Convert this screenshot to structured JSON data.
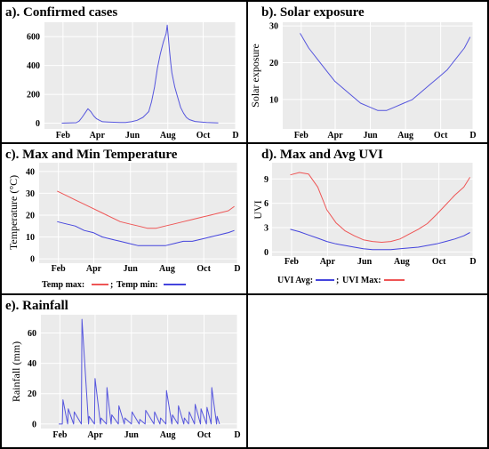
{
  "chart_data": [
    {
      "type": "line",
      "title": "a). Confirmed cases",
      "ylabel": "",
      "xticks": [
        "Feb",
        "Apr",
        "Jun",
        "Aug",
        "Oct",
        "D"
      ],
      "yticks": [
        0,
        200,
        400,
        600
      ],
      "ylim": [
        -40,
        700
      ],
      "xlim": [
        0,
        330
      ],
      "x_unit": "days from Jan 1",
      "tick_positions": [
        32,
        91,
        152,
        213,
        274,
        330
      ],
      "series": [
        {
          "color": "#5555dd",
          "x": [
            30,
            55,
            60,
            65,
            70,
            75,
            80,
            85,
            90,
            95,
            100,
            110,
            120,
            130,
            140,
            150,
            160,
            170,
            180,
            185,
            190,
            195,
            200,
            205,
            210,
            212,
            214,
            216,
            218,
            220,
            225,
            230,
            235,
            240,
            245,
            250,
            260,
            270,
            280,
            290,
            300
          ],
          "y": [
            0,
            3,
            15,
            40,
            70,
            100,
            80,
            50,
            30,
            20,
            10,
            8,
            6,
            5,
            5,
            10,
            20,
            40,
            80,
            150,
            250,
            380,
            480,
            560,
            620,
            680,
            590,
            500,
            420,
            350,
            250,
            180,
            110,
            70,
            40,
            25,
            12,
            8,
            5,
            3,
            2
          ]
        }
      ]
    },
    {
      "type": "line",
      "title": "b). Solar exposure",
      "ylabel": "Solar exposure",
      "xticks": [
        "Feb",
        "Apr",
        "Jun",
        "Aug",
        "Oct",
        "D"
      ],
      "yticks": [
        10,
        20,
        30
      ],
      "ylim": [
        2,
        31
      ],
      "xlim": [
        0,
        330
      ],
      "tick_positions": [
        32,
        91,
        152,
        213,
        274,
        330
      ],
      "series": [
        {
          "color": "#5555dd",
          "x": [
            30,
            45,
            60,
            75,
            90,
            105,
            120,
            135,
            150,
            165,
            180,
            195,
            210,
            225,
            240,
            255,
            270,
            285,
            300,
            315,
            325
          ],
          "y": [
            28,
            24,
            21,
            18,
            15,
            13,
            11,
            9,
            8,
            7,
            7,
            8,
            9,
            10,
            12,
            14,
            16,
            18,
            21,
            24,
            27
          ]
        }
      ]
    },
    {
      "type": "line",
      "title": "c). Max and Min Temperature",
      "ylabel": "Temperature (°C)",
      "xticks": [
        "Feb",
        "Apr",
        "Jun",
        "Aug",
        "Oct",
        "D"
      ],
      "yticks": [
        0,
        10,
        20,
        30,
        40
      ],
      "ylim": [
        -2,
        44
      ],
      "xlim": [
        0,
        330
      ],
      "tick_positions": [
        32,
        91,
        152,
        213,
        274,
        330
      ],
      "series": [
        {
          "name": "Temp max:",
          "color": "#ee5555",
          "x": [
            30,
            45,
            60,
            75,
            90,
            105,
            120,
            135,
            150,
            165,
            180,
            195,
            210,
            225,
            240,
            255,
            270,
            285,
            300,
            315,
            325
          ],
          "y": [
            31,
            29,
            27,
            25,
            23,
            21,
            19,
            17,
            16,
            15,
            14,
            14,
            15,
            16,
            17,
            18,
            19,
            20,
            21,
            22,
            24
          ]
        },
        {
          "name": "Temp min:",
          "color": "#4444dd",
          "x": [
            30,
            45,
            60,
            75,
            90,
            105,
            120,
            135,
            150,
            165,
            180,
            195,
            210,
            225,
            240,
            255,
            270,
            285,
            300,
            315,
            325
          ],
          "y": [
            17,
            16,
            15,
            13,
            12,
            10,
            9,
            8,
            7,
            6,
            6,
            6,
            6,
            7,
            8,
            8,
            9,
            10,
            11,
            12,
            13
          ]
        }
      ]
    },
    {
      "type": "line",
      "title": "d). Max and Avg UVI",
      "ylabel": "UVI",
      "xticks": [
        "Feb",
        "Apr",
        "Jun",
        "Aug",
        "Oct",
        "D"
      ],
      "yticks": [
        0,
        3,
        6,
        9
      ],
      "ylim": [
        -0.5,
        11
      ],
      "xlim": [
        0,
        330
      ],
      "tick_positions": [
        32,
        91,
        152,
        213,
        274,
        330
      ],
      "series": [
        {
          "name": "UVI Avg:",
          "color": "#4444dd",
          "x": [
            30,
            45,
            60,
            75,
            90,
            105,
            120,
            135,
            150,
            165,
            180,
            195,
            210,
            225,
            240,
            255,
            270,
            285,
            300,
            315,
            325
          ],
          "y": [
            2.8,
            2.5,
            2.1,
            1.7,
            1.3,
            1.0,
            0.8,
            0.6,
            0.4,
            0.3,
            0.3,
            0.3,
            0.4,
            0.5,
            0.6,
            0.8,
            1.0,
            1.3,
            1.6,
            2.0,
            2.4
          ]
        },
        {
          "name": "UVI Max:",
          "color": "#ee5555",
          "x": [
            30,
            45,
            60,
            75,
            90,
            105,
            120,
            135,
            150,
            165,
            180,
            195,
            210,
            225,
            240,
            255,
            270,
            285,
            300,
            315,
            325
          ],
          "y": [
            9.5,
            9.8,
            9.6,
            8.0,
            5.2,
            3.6,
            2.6,
            2.0,
            1.5,
            1.3,
            1.2,
            1.3,
            1.6,
            2.2,
            2.8,
            3.5,
            4.6,
            5.8,
            7.0,
            8.0,
            9.2
          ]
        }
      ]
    },
    {
      "type": "line",
      "title": "e). Rainfall",
      "ylabel": "Rainfall (mm)",
      "xticks": [
        "Feb",
        "Apr",
        "Jun",
        "Aug",
        "Oct",
        "D"
      ],
      "yticks": [
        0,
        20,
        40,
        60
      ],
      "ylim": [
        -3,
        72
      ],
      "xlim": [
        0,
        330
      ],
      "tick_positions": [
        32,
        91,
        152,
        213,
        274,
        330
      ],
      "series": [
        {
          "color": "#5555dd",
          "x": [
            30,
            36,
            37,
            45,
            46,
            55,
            56,
            68,
            69,
            80,
            81,
            90,
            91,
            100,
            101,
            110,
            111,
            118,
            119,
            130,
            131,
            140,
            141,
            152,
            153,
            165,
            166,
            175,
            176,
            190,
            191,
            200,
            201,
            210,
            211,
            220,
            221,
            230,
            231,
            240,
            241,
            248,
            249,
            258,
            259,
            268,
            269,
            278,
            279,
            286,
            287,
            295,
            296,
            300
          ],
          "y": [
            0,
            0,
            16,
            0,
            10,
            0,
            8,
            0,
            69,
            0,
            5,
            0,
            30,
            0,
            4,
            0,
            24,
            0,
            6,
            0,
            12,
            0,
            4,
            0,
            8,
            0,
            3,
            0,
            9,
            0,
            8,
            0,
            4,
            0,
            22,
            0,
            6,
            0,
            12,
            0,
            4,
            0,
            8,
            0,
            13,
            0,
            10,
            0,
            11,
            0,
            24,
            0,
            5,
            0
          ]
        }
      ]
    }
  ]
}
